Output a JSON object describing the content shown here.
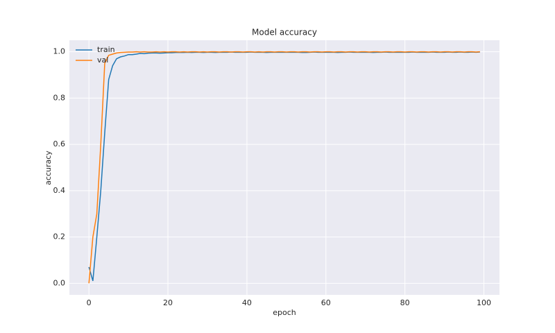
{
  "chart_data": {
    "type": "line",
    "title": "Model accuracy",
    "x_label": "epoch",
    "y_label": "accuracy",
    "x": [
      0,
      1,
      2,
      3,
      4,
      5,
      6,
      7,
      8,
      9,
      10,
      11,
      12,
      13,
      14,
      15,
      16,
      17,
      18,
      19,
      20,
      21,
      22,
      23,
      24,
      25,
      26,
      27,
      28,
      29,
      30,
      31,
      32,
      33,
      34,
      35,
      36,
      37,
      38,
      39,
      40,
      41,
      42,
      43,
      44,
      45,
      46,
      47,
      48,
      49,
      50,
      51,
      52,
      53,
      54,
      55,
      56,
      57,
      58,
      59,
      60,
      61,
      62,
      63,
      64,
      65,
      66,
      67,
      68,
      69,
      70,
      71,
      72,
      73,
      74,
      75,
      76,
      77,
      78,
      79,
      80,
      81,
      82,
      83,
      84,
      85,
      86,
      87,
      88,
      89,
      90,
      91,
      92,
      93,
      94,
      95,
      96,
      97,
      98,
      99
    ],
    "series": [
      {
        "name": "train",
        "color": "#1f77b4",
        "values": [
          0.07,
          0.01,
          0.2,
          0.4,
          0.65,
          0.88,
          0.94,
          0.97,
          0.978,
          0.982,
          0.988,
          0.988,
          0.99,
          0.993,
          0.992,
          0.994,
          0.995,
          0.995,
          0.994,
          0.995,
          0.996,
          0.996,
          0.997,
          0.997,
          0.997,
          0.998,
          0.997,
          0.998,
          0.998,
          0.997,
          0.998,
          0.998,
          0.997,
          0.998,
          0.998,
          0.998,
          0.999,
          0.998,
          0.998,
          0.998,
          0.998,
          0.999,
          0.998,
          0.998,
          0.998,
          0.997,
          0.998,
          0.998,
          0.998,
          0.998,
          0.998,
          0.998,
          0.998,
          0.998,
          0.997,
          0.997,
          0.998,
          0.999,
          0.998,
          0.998,
          0.998,
          0.998,
          0.998,
          0.997,
          0.998,
          0.998,
          0.999,
          0.998,
          0.998,
          0.998,
          0.998,
          0.998,
          0.997,
          0.998,
          0.998,
          0.999,
          0.998,
          0.998,
          0.998,
          0.998,
          0.998,
          0.998,
          0.999,
          0.998,
          0.998,
          0.998,
          0.998,
          0.999,
          0.998,
          0.998,
          0.998,
          0.999,
          0.998,
          0.998,
          0.999,
          0.998,
          0.998,
          0.999,
          0.998,
          0.999
        ]
      },
      {
        "name": "val",
        "color": "#ff7f0e",
        "values": [
          0.0,
          0.2,
          0.3,
          0.6,
          0.95,
          0.985,
          0.99,
          0.995,
          0.997,
          0.998,
          0.999,
          0.999,
          1.0,
          0.999,
          1.0,
          0.999,
          0.999,
          1.0,
          0.999,
          1.0,
          0.999,
          1.0,
          1.0,
          0.999,
          1.0,
          0.999,
          1.0,
          1.0,
          0.999,
          1.0,
          0.999,
          1.0,
          1.0,
          0.999,
          1.0,
          1.0,
          0.999,
          1.0,
          1.0,
          0.999,
          1.0,
          1.0,
          0.999,
          1.0,
          0.999,
          1.0,
          1.0,
          0.999,
          1.0,
          1.0,
          0.999,
          1.0,
          1.0,
          0.999,
          1.0,
          1.0,
          0.999,
          1.0,
          1.0,
          0.999,
          1.0,
          1.0,
          0.999,
          1.0,
          1.0,
          0.999,
          1.0,
          1.0,
          0.999,
          1.0,
          1.0,
          0.999,
          1.0,
          1.0,
          0.999,
          1.0,
          1.0,
          0.999,
          1.0,
          1.0,
          0.999,
          1.0,
          1.0,
          0.999,
          1.0,
          1.0,
          0.999,
          1.0,
          1.0,
          0.999,
          1.0,
          1.0,
          0.999,
          1.0,
          1.0,
          0.999,
          1.0,
          1.0,
          0.999,
          1.0
        ]
      }
    ],
    "xlim": [
      -4.95,
      103.95
    ],
    "ylim": [
      -0.05,
      1.05
    ],
    "xticks": [
      0,
      20,
      40,
      60,
      80,
      100
    ],
    "yticks": [
      {
        "value": 0,
        "label": "0.0"
      },
      0.2,
      0.4,
      0.6,
      0.8,
      {
        "value": 1,
        "label": "1.0"
      }
    ],
    "grid": true,
    "legend": "upper left"
  }
}
